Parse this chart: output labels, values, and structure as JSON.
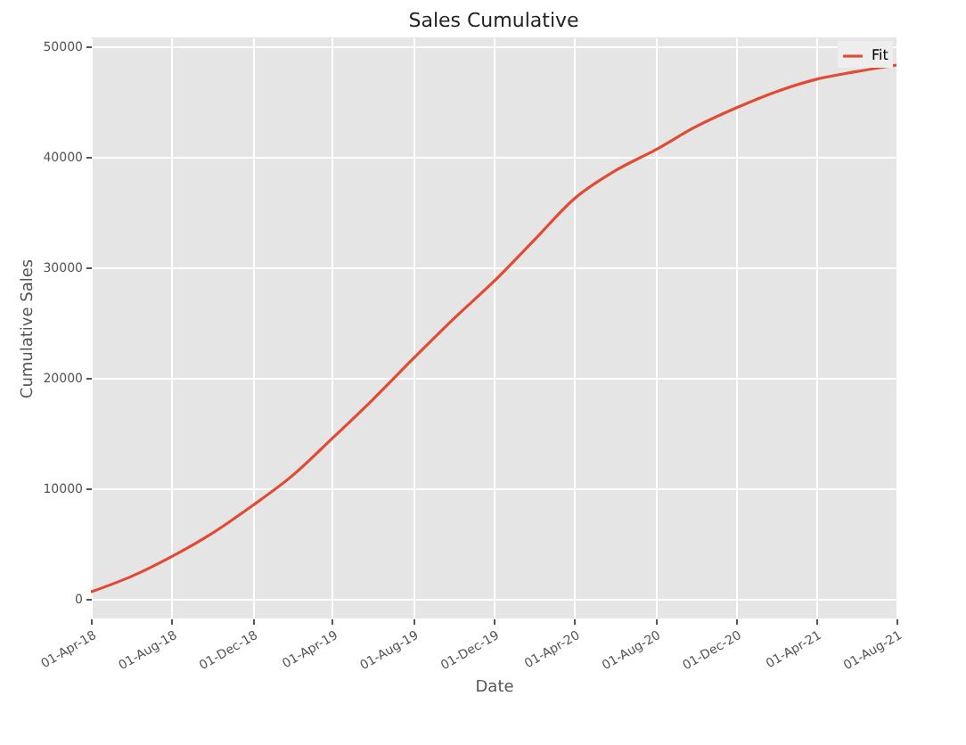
{
  "chart_data": {
    "type": "line",
    "title": "Sales Cumulative",
    "xlabel": "Date",
    "ylabel": "Cumulative Sales",
    "x": [
      "2018-04-01",
      "2018-06-01",
      "2018-08-01",
      "2018-10-01",
      "2018-12-01",
      "2019-02-01",
      "2019-04-01",
      "2019-06-01",
      "2019-08-01",
      "2019-10-01",
      "2019-12-01",
      "2020-02-01",
      "2020-04-01",
      "2020-06-01",
      "2020-08-01",
      "2020-10-01",
      "2020-12-01",
      "2021-02-01",
      "2021-04-01",
      "2021-06-01",
      "2021-08-01"
    ],
    "series": [
      {
        "name": "Fit",
        "color": "#e24a33",
        "values": [
          600,
          2000,
          3800,
          5900,
          8400,
          11200,
          14500,
          18000,
          21700,
          25300,
          28700,
          32500,
          36200,
          38700,
          40600,
          42700,
          44400,
          45900,
          47000,
          47700,
          48300
        ]
      }
    ],
    "xlim": [
      "2018-04-01",
      "2021-08-01"
    ],
    "xticks": [
      {
        "value": "2018-04-01",
        "label": "01-Apr-18"
      },
      {
        "value": "2018-08-01",
        "label": "01-Aug-18"
      },
      {
        "value": "2018-12-01",
        "label": "01-Dec-18"
      },
      {
        "value": "2019-04-01",
        "label": "01-Apr-19"
      },
      {
        "value": "2019-08-01",
        "label": "01-Aug-19"
      },
      {
        "value": "2019-12-01",
        "label": "01-Dec-19"
      },
      {
        "value": "2020-04-01",
        "label": "01-Apr-20"
      },
      {
        "value": "2020-08-01",
        "label": "01-Aug-20"
      },
      {
        "value": "2020-12-01",
        "label": "01-Dec-20"
      },
      {
        "value": "2021-04-01",
        "label": "01-Apr-21"
      },
      {
        "value": "2021-08-01",
        "label": "01-Aug-21"
      }
    ],
    "ylim": [
      -1800,
      50800
    ],
    "yticks": [
      0,
      10000,
      20000,
      30000,
      40000,
      50000
    ],
    "grid": true,
    "legend": "top right",
    "marker": "none",
    "line_style": "solid"
  }
}
